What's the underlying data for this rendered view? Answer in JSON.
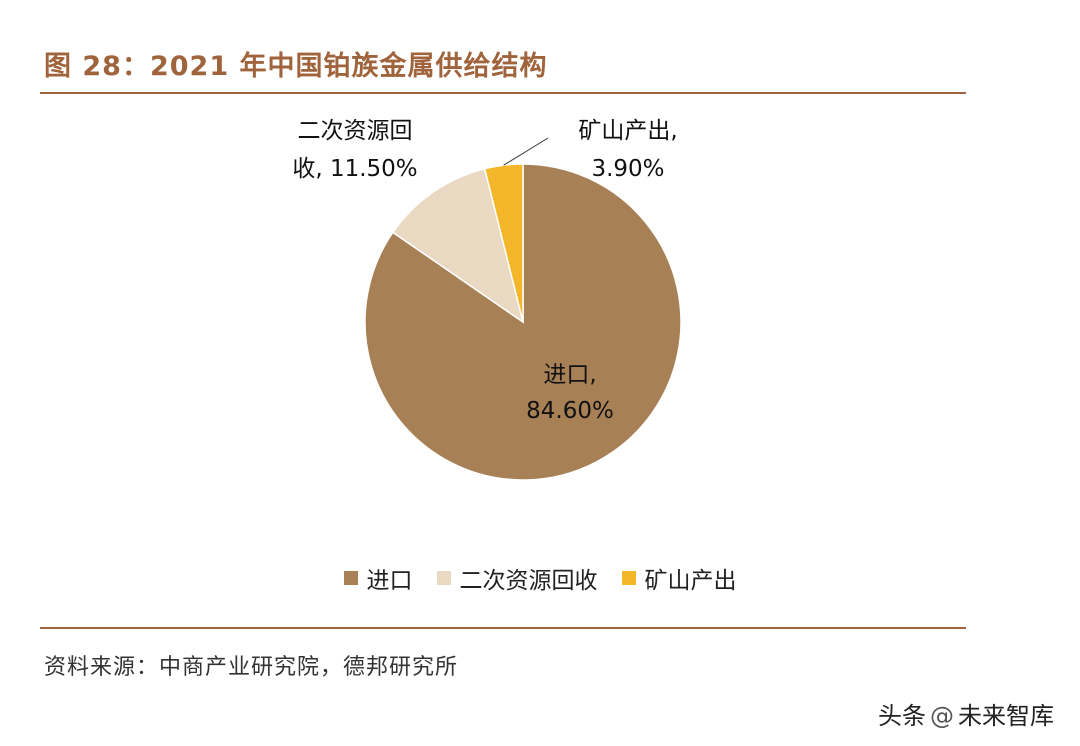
{
  "title": "图 28：2021 年中国铂族金属供给结构",
  "source": "资料来源：中商产业研究院，德邦研究所",
  "watermark": {
    "prefix": "头条",
    "name": "未来智库"
  },
  "chart_data": {
    "type": "pie",
    "title": "图 28：2021 年中国铂族金属供给结构",
    "start_angle_deg": 0,
    "direction": "clockwise",
    "slices": [
      {
        "label": "进口",
        "value": 84.6,
        "data_label": [
          "进口,",
          "84.60%"
        ],
        "color": "#a88055"
      },
      {
        "label": "二次资源回收",
        "value": 11.5,
        "data_label": [
          "二次资源回",
          "收, 11.50%"
        ],
        "color": "#ead9c2"
      },
      {
        "label": "矿山产出",
        "value": 3.9,
        "data_label": [
          "矿山产出,",
          "3.90%"
        ],
        "color": "#f5b72a"
      }
    ],
    "legend": {
      "position": "bottom",
      "entries": [
        "进口",
        "二次资源回收",
        "矿山产出"
      ]
    }
  }
}
